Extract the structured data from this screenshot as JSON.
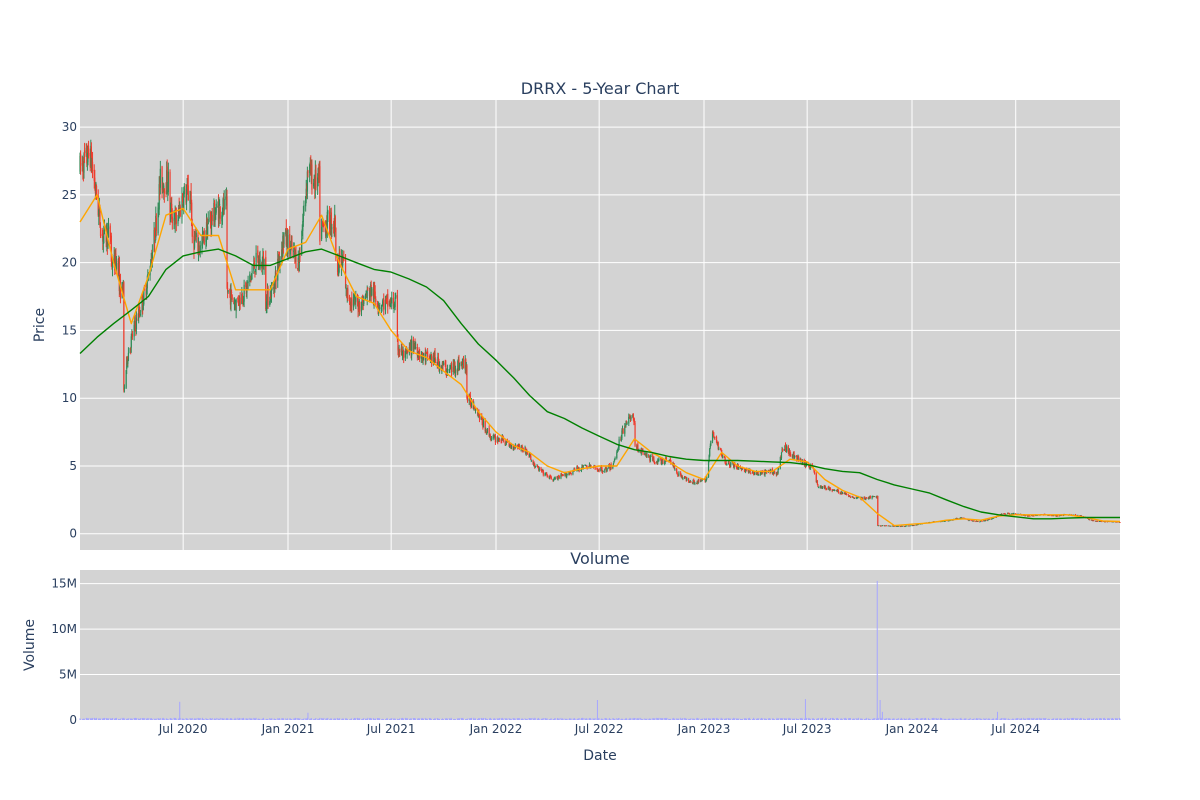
{
  "chart": {
    "title": "DRRX - 5-Year Chart",
    "volume_title": "Volume",
    "xlabel": "Date",
    "ylabel_price": "Price",
    "ylabel_volume": "Volume",
    "plot_bg": "#d3d3d3",
    "colors": {
      "up": "#2e8b57",
      "down": "#ef3b2c",
      "ma_short": "#ffa500",
      "ma_long": "#008000",
      "volume": "#a6a6ff"
    }
  },
  "chart_data": [
    {
      "type": "candlestick",
      "title": "DRRX - 5-Year Chart",
      "xlabel": "",
      "ylabel": "Price",
      "x_range": [
        "2020-01-02",
        "2024-12-31"
      ],
      "ylim": [
        -1.2,
        32
      ],
      "y_ticks": [
        0,
        5,
        10,
        15,
        20,
        25,
        30
      ],
      "x_ticks": [
        {
          "date": "2020-07-01",
          "label": "Jul 2020"
        },
        {
          "date": "2021-01-01",
          "label": "Jan 2021"
        },
        {
          "date": "2021-07-01",
          "label": "Jul 2021"
        },
        {
          "date": "2022-01-01",
          "label": "Jan 2022"
        },
        {
          "date": "2022-07-01",
          "label": "Jul 2022"
        },
        {
          "date": "2023-01-01",
          "label": "Jan 2023"
        },
        {
          "date": "2023-07-01",
          "label": "Jul 2023"
        },
        {
          "date": "2024-01-01",
          "label": "Jan 2024"
        },
        {
          "date": "2024-07-01",
          "label": "Jul 2024"
        }
      ],
      "grid": true,
      "price_close_approx": [
        [
          "2020-01-02",
          27
        ],
        [
          "2020-01-20",
          28
        ],
        [
          "2020-02-10",
          22
        ],
        [
          "2020-02-25",
          20
        ],
        [
          "2020-03-10",
          18
        ],
        [
          "2020-03-18",
          10
        ],
        [
          "2020-03-25",
          13
        ],
        [
          "2020-04-05",
          15
        ],
        [
          "2020-04-20",
          17
        ],
        [
          "2020-05-01",
          19
        ],
        [
          "2020-05-12",
          22
        ],
        [
          "2020-05-22",
          26
        ],
        [
          "2020-06-05",
          24
        ],
        [
          "2020-06-20",
          23
        ],
        [
          "2020-07-01",
          25
        ],
        [
          "2020-07-15",
          22
        ],
        [
          "2020-08-01",
          21
        ],
        [
          "2020-08-15",
          23
        ],
        [
          "2020-09-01",
          24
        ],
        [
          "2020-09-15",
          18
        ],
        [
          "2020-10-01",
          17
        ],
        [
          "2020-10-20",
          18
        ],
        [
          "2020-11-05",
          20
        ],
        [
          "2020-11-20",
          17
        ],
        [
          "2020-12-05",
          18
        ],
        [
          "2020-12-25",
          22
        ],
        [
          "2021-01-05",
          21
        ],
        [
          "2021-01-20",
          20
        ],
        [
          "2021-02-05",
          27
        ],
        [
          "2021-02-15",
          26
        ],
        [
          "2021-02-25",
          22
        ],
        [
          "2021-03-10",
          23
        ],
        [
          "2021-03-25",
          20
        ],
        [
          "2021-04-10",
          18
        ],
        [
          "2021-04-25",
          17
        ],
        [
          "2021-05-10",
          17
        ],
        [
          "2021-05-25",
          18
        ],
        [
          "2021-06-10",
          17
        ],
        [
          "2021-06-25",
          17
        ],
        [
          "2021-07-10",
          14
        ],
        [
          "2021-07-25",
          13
        ],
        [
          "2021-08-10",
          14
        ],
        [
          "2021-08-25",
          13
        ],
        [
          "2021-09-10",
          13
        ],
        [
          "2021-09-25",
          12.5
        ],
        [
          "2021-10-10",
          12
        ],
        [
          "2021-10-25",
          12.5
        ],
        [
          "2021-11-10",
          10
        ],
        [
          "2021-11-25",
          9.5
        ],
        [
          "2021-12-10",
          8
        ],
        [
          "2021-12-25",
          7
        ],
        [
          "2022-01-10",
          7
        ],
        [
          "2022-01-25",
          6.5
        ],
        [
          "2022-02-10",
          6.5
        ],
        [
          "2022-02-25",
          6
        ],
        [
          "2022-03-10",
          5
        ],
        [
          "2022-03-25",
          4.5
        ],
        [
          "2022-04-10",
          4
        ],
        [
          "2022-04-25",
          4.2
        ],
        [
          "2022-05-10",
          4.5
        ],
        [
          "2022-05-25",
          4.8
        ],
        [
          "2022-06-10",
          5
        ],
        [
          "2022-06-25",
          4.8
        ],
        [
          "2022-07-10",
          4.7
        ],
        [
          "2022-07-25",
          5
        ],
        [
          "2022-08-10",
          7.5
        ],
        [
          "2022-08-20",
          8.5
        ],
        [
          "2022-09-01",
          6.5
        ],
        [
          "2022-09-15",
          6
        ],
        [
          "2022-10-01",
          5.5
        ],
        [
          "2022-10-15",
          5.3
        ],
        [
          "2022-11-01",
          5.5
        ],
        [
          "2022-11-15",
          4.5
        ],
        [
          "2022-12-01",
          4
        ],
        [
          "2022-12-20",
          3.8
        ],
        [
          "2023-01-05",
          4
        ],
        [
          "2023-01-15",
          7.5
        ],
        [
          "2023-01-25",
          6.5
        ],
        [
          "2023-02-10",
          5.2
        ],
        [
          "2023-02-25",
          5
        ],
        [
          "2023-03-10",
          4.8
        ],
        [
          "2023-03-25",
          4.5
        ],
        [
          "2023-04-10",
          4.4
        ],
        [
          "2023-04-25",
          4.6
        ],
        [
          "2023-05-10",
          4.5
        ],
        [
          "2023-05-20",
          6.5
        ],
        [
          "2023-06-01",
          6
        ],
        [
          "2023-06-15",
          5.5
        ],
        [
          "2023-07-01",
          5
        ],
        [
          "2023-07-10",
          5
        ],
        [
          "2023-07-20",
          3.5
        ],
        [
          "2023-08-10",
          3.3
        ],
        [
          "2023-09-01",
          3
        ],
        [
          "2023-09-20",
          2.7
        ],
        [
          "2023-10-10",
          2.6
        ],
        [
          "2023-10-25",
          2.7
        ],
        [
          "2023-11-01",
          0.6
        ],
        [
          "2023-11-20",
          0.6
        ],
        [
          "2023-12-10",
          0.55
        ],
        [
          "2024-01-01",
          0.6
        ],
        [
          "2024-01-25",
          0.8
        ],
        [
          "2024-02-15",
          0.9
        ],
        [
          "2024-03-10",
          1.0
        ],
        [
          "2024-03-25",
          1.2
        ],
        [
          "2024-04-10",
          1.0
        ],
        [
          "2024-04-25",
          0.9
        ],
        [
          "2024-05-10",
          1.0
        ],
        [
          "2024-05-25",
          1.2
        ],
        [
          "2024-06-10",
          1.5
        ],
        [
          "2024-06-25",
          1.5
        ],
        [
          "2024-07-10",
          1.4
        ],
        [
          "2024-07-25",
          1.3
        ],
        [
          "2024-08-10",
          1.4
        ],
        [
          "2024-08-25",
          1.4
        ],
        [
          "2024-09-10",
          1.3
        ],
        [
          "2024-09-25",
          1.4
        ],
        [
          "2024-10-10",
          1.4
        ],
        [
          "2024-10-25",
          1.3
        ],
        [
          "2024-11-10",
          1.0
        ],
        [
          "2024-11-25",
          0.9
        ],
        [
          "2024-12-10",
          0.9
        ],
        [
          "2024-12-31",
          0.85
        ]
      ],
      "ma_short_approx": [
        [
          "2020-01-02",
          23
        ],
        [
          "2020-02-01",
          25
        ],
        [
          "2020-03-01",
          20
        ],
        [
          "2020-04-01",
          15.5
        ],
        [
          "2020-05-01",
          19
        ],
        [
          "2020-06-01",
          23.5
        ],
        [
          "2020-07-01",
          24
        ],
        [
          "2020-08-01",
          22
        ],
        [
          "2020-09-01",
          22
        ],
        [
          "2020-10-01",
          18
        ],
        [
          "2020-11-01",
          18
        ],
        [
          "2020-12-01",
          18
        ],
        [
          "2021-01-01",
          21
        ],
        [
          "2021-02-01",
          21.5
        ],
        [
          "2021-03-01",
          23.5
        ],
        [
          "2021-04-01",
          20
        ],
        [
          "2021-05-01",
          17.5
        ],
        [
          "2021-06-01",
          17
        ],
        [
          "2021-07-01",
          15
        ],
        [
          "2021-08-01",
          13.5
        ],
        [
          "2021-09-01",
          13
        ],
        [
          "2021-10-01",
          12
        ],
        [
          "2021-11-01",
          11
        ],
        [
          "2021-12-01",
          9
        ],
        [
          "2022-01-01",
          7.5
        ],
        [
          "2022-02-01",
          6.5
        ],
        [
          "2022-03-01",
          6
        ],
        [
          "2022-04-01",
          5
        ],
        [
          "2022-05-01",
          4.5
        ],
        [
          "2022-06-01",
          4.8
        ],
        [
          "2022-07-01",
          5
        ],
        [
          "2022-08-01",
          5
        ],
        [
          "2022-09-01",
          7
        ],
        [
          "2022-10-01",
          6
        ],
        [
          "2022-11-01",
          5.3
        ],
        [
          "2022-12-01",
          4.5
        ],
        [
          "2023-01-01",
          4
        ],
        [
          "2023-02-01",
          6
        ],
        [
          "2023-03-01",
          5
        ],
        [
          "2023-04-01",
          4.6
        ],
        [
          "2023-05-01",
          4.6
        ],
        [
          "2023-06-01",
          5.5
        ],
        [
          "2023-07-01",
          5.3
        ],
        [
          "2023-08-01",
          4
        ],
        [
          "2023-09-01",
          3.2
        ],
        [
          "2023-10-01",
          2.7
        ],
        [
          "2023-11-01",
          1.5
        ],
        [
          "2023-12-01",
          0.6
        ],
        [
          "2024-01-01",
          0.7
        ],
        [
          "2024-02-01",
          0.8
        ],
        [
          "2024-03-01",
          1.0
        ],
        [
          "2024-04-01",
          1.1
        ],
        [
          "2024-05-01",
          1.0
        ],
        [
          "2024-06-01",
          1.3
        ],
        [
          "2024-07-01",
          1.4
        ],
        [
          "2024-08-01",
          1.4
        ],
        [
          "2024-09-01",
          1.4
        ],
        [
          "2024-10-01",
          1.4
        ],
        [
          "2024-11-01",
          1.2
        ],
        [
          "2024-12-01",
          0.95
        ],
        [
          "2024-12-31",
          0.9
        ]
      ],
      "ma_long_approx": [
        [
          "2020-01-02",
          13.3
        ],
        [
          "2020-02-01",
          14.5
        ],
        [
          "2020-03-01",
          15.5
        ],
        [
          "2020-04-01",
          16.5
        ],
        [
          "2020-05-01",
          17.5
        ],
        [
          "2020-06-01",
          19.5
        ],
        [
          "2020-07-01",
          20.5
        ],
        [
          "2020-08-01",
          20.8
        ],
        [
          "2020-09-01",
          21.0
        ],
        [
          "2020-10-01",
          20.5
        ],
        [
          "2020-11-01",
          19.8
        ],
        [
          "2020-12-01",
          19.8
        ],
        [
          "2021-01-01",
          20.3
        ],
        [
          "2021-02-01",
          20.8
        ],
        [
          "2021-03-01",
          21.0
        ],
        [
          "2021-04-01",
          20.5
        ],
        [
          "2021-05-01",
          20.0
        ],
        [
          "2021-06-01",
          19.5
        ],
        [
          "2021-07-01",
          19.3
        ],
        [
          "2021-08-01",
          18.8
        ],
        [
          "2021-09-01",
          18.2
        ],
        [
          "2021-10-01",
          17.2
        ],
        [
          "2021-11-01",
          15.5
        ],
        [
          "2021-12-01",
          14.0
        ],
        [
          "2022-01-01",
          12.8
        ],
        [
          "2022-02-01",
          11.5
        ],
        [
          "2022-03-01",
          10.2
        ],
        [
          "2022-04-01",
          9.0
        ],
        [
          "2022-05-01",
          8.5
        ],
        [
          "2022-06-01",
          7.8
        ],
        [
          "2022-07-01",
          7.2
        ],
        [
          "2022-08-01",
          6.6
        ],
        [
          "2022-09-01",
          6.2
        ],
        [
          "2022-10-01",
          6.0
        ],
        [
          "2022-11-01",
          5.7
        ],
        [
          "2022-12-01",
          5.5
        ],
        [
          "2023-01-01",
          5.4
        ],
        [
          "2023-02-01",
          5.4
        ],
        [
          "2023-03-01",
          5.4
        ],
        [
          "2023-04-01",
          5.35
        ],
        [
          "2023-05-01",
          5.3
        ],
        [
          "2023-06-01",
          5.25
        ],
        [
          "2023-07-01",
          5.1
        ],
        [
          "2023-08-01",
          4.8
        ],
        [
          "2023-09-01",
          4.6
        ],
        [
          "2023-10-01",
          4.5
        ],
        [
          "2023-11-01",
          4.0
        ],
        [
          "2023-12-01",
          3.6
        ],
        [
          "2024-01-01",
          3.3
        ],
        [
          "2024-02-01",
          3.0
        ],
        [
          "2024-03-01",
          2.5
        ],
        [
          "2024-04-01",
          2.0
        ],
        [
          "2024-05-01",
          1.6
        ],
        [
          "2024-06-01",
          1.4
        ],
        [
          "2024-07-01",
          1.25
        ],
        [
          "2024-08-01",
          1.1
        ],
        [
          "2024-09-01",
          1.1
        ],
        [
          "2024-10-01",
          1.15
        ],
        [
          "2024-11-01",
          1.2
        ],
        [
          "2024-12-01",
          1.2
        ],
        [
          "2024-12-31",
          1.2
        ]
      ]
    },
    {
      "type": "bar",
      "title": "Volume",
      "xlabel": "Date",
      "ylabel": "Volume",
      "ylim": [
        0,
        16500000
      ],
      "y_ticks": [
        {
          "value": 0,
          "label": "0"
        },
        {
          "value": 5000000,
          "label": "5M"
        },
        {
          "value": 10000000,
          "label": "10M"
        },
        {
          "value": 15000000,
          "label": "15M"
        }
      ],
      "baseline_volume": 150000,
      "spikes": [
        [
          "2020-06-25",
          2000000
        ],
        [
          "2021-02-05",
          800000
        ],
        [
          "2022-06-28",
          2200000
        ],
        [
          "2023-06-28",
          2300000
        ],
        [
          "2023-10-28",
          1800000
        ],
        [
          "2023-11-01",
          15300000
        ],
        [
          "2023-11-06",
          2200000
        ],
        [
          "2023-11-10",
          900000
        ],
        [
          "2024-05-25",
          1800000
        ],
        [
          "2024-05-30",
          900000
        ]
      ]
    }
  ]
}
